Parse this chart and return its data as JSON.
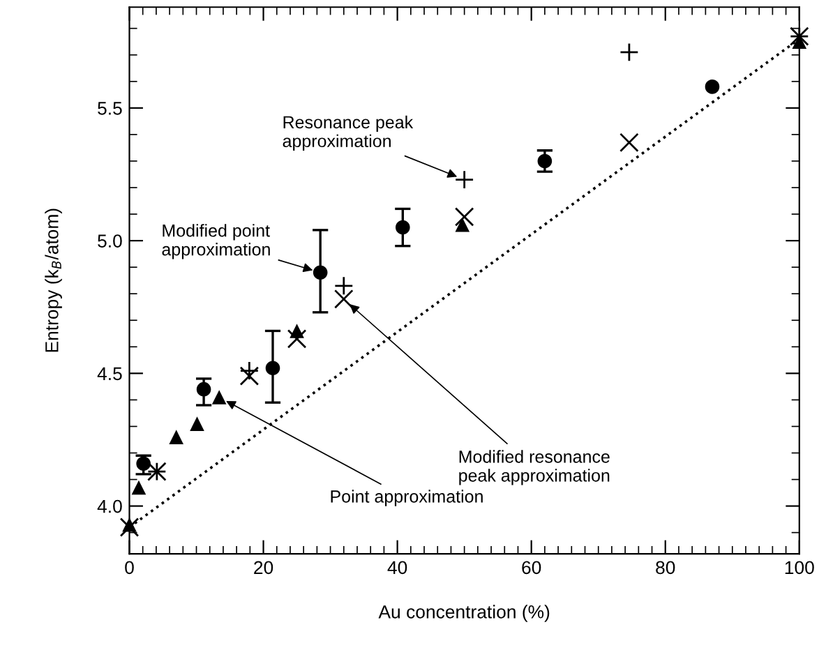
{
  "chart_data": {
    "type": "scatter",
    "xlabel": "Au concentration (%)",
    "ylabel": "Entropy (k$_{B}$/atom)",
    "xlim": [
      0,
      100
    ],
    "ylim": [
      3.82,
      5.88
    ],
    "xticks": [
      0,
      20,
      40,
      60,
      80,
      100
    ],
    "yticks": [
      {
        "value": 4.0,
        "label": "4.0"
      },
      4.5,
      {
        "value": 5.0,
        "label": "5.0"
      },
      5.5
    ],
    "grid": false,
    "legend": false,
    "series": [
      {
        "marker": "circle",
        "color": "#000000",
        "x": [
          2.1,
          11.1,
          21.4,
          28.5,
          40.8,
          62,
          87
        ],
        "values": [
          4.16,
          4.44,
          4.52,
          4.88,
          5.05,
          5.3,
          5.58
        ],
        "errors": [
          [
            4.12,
            4.19
          ],
          [
            4.38,
            4.48
          ],
          [
            4.39,
            4.66
          ],
          [
            4.73,
            5.04
          ],
          [
            4.98,
            5.12
          ],
          [
            5.26,
            5.34
          ],
          null
        ]
      },
      {
        "marker": "triangle",
        "color": "#000000",
        "x": [
          0,
          1.4,
          7,
          10.1,
          13.4,
          25,
          49.7,
          100
        ],
        "values": [
          3.93,
          4.07,
          4.26,
          4.31,
          4.41,
          4.66,
          5.06,
          5.75
        ]
      },
      {
        "marker": "cross",
        "color": "#000000",
        "x": [
          0,
          4.1,
          17.9,
          25,
          32,
          50,
          74.6,
          100
        ],
        "values": [
          3.92,
          4.13,
          4.49,
          4.63,
          4.78,
          5.09,
          5.37,
          5.77
        ]
      },
      {
        "marker": "plus",
        "color": "#000000",
        "x": [
          4.1,
          17.9,
          32,
          50,
          74.6,
          100
        ],
        "values": [
          4.13,
          4.51,
          4.83,
          5.23,
          5.71,
          5.77
        ]
      },
      {
        "type": "line",
        "marker": "none",
        "line_style": "dotted",
        "color": "#000000",
        "x": [
          0,
          100
        ],
        "values": [
          3.92,
          5.76
        ]
      }
    ],
    "annotations": [
      {
        "text": "Resonance peak\napproximation",
        "x": 50,
        "y": 5.23
      },
      {
        "text": "Modified point\napproximation",
        "x": 28.5,
        "y": 4.88
      },
      {
        "text": "Modified resonance\npeak approximation",
        "x": 32,
        "y": 4.78
      },
      {
        "text": "Point approximation",
        "x": 13.4,
        "y": 4.41
      }
    ]
  }
}
